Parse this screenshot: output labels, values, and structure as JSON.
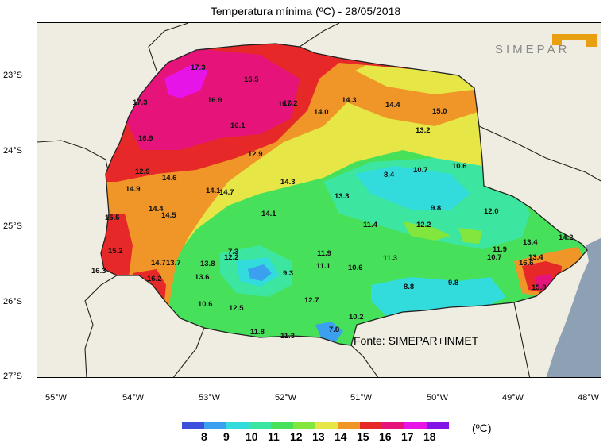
{
  "title": "Temperatura mínima (ºC)  -  28/05/2018",
  "logo_text": "SIMEPAR",
  "source": "Fonte: SIMEPAR+INMET",
  "lat_labels": [
    "23°S",
    "24°S",
    "25°S",
    "26°S",
    "27°S"
  ],
  "lon_labels": [
    "55°W",
    "54°W",
    "53°W",
    "52°W",
    "51°W",
    "50°W",
    "49°W",
    "48°W"
  ],
  "legend": {
    "unit": "(ºC)",
    "labels": [
      "8",
      "9",
      "10",
      "11",
      "12",
      "13",
      "14",
      "15",
      "16",
      "17",
      "18"
    ],
    "colors": [
      "#3c50dc",
      "#3ca0f0",
      "#32dcdc",
      "#3ce6a0",
      "#46e05a",
      "#82e63c",
      "#e6e646",
      "#f09628",
      "#e62828",
      "#e6147a",
      "#e614e6",
      "#8214e6"
    ]
  },
  "stations": [
    {
      "v": "17.3"
    },
    {
      "v": "15.5"
    },
    {
      "v": "17.3"
    },
    {
      "v": "16.9"
    },
    {
      "v": "16.2"
    },
    {
      "v": "14.3"
    },
    {
      "v": "14.4"
    },
    {
      "v": "15.0"
    },
    {
      "v": "14.0"
    },
    {
      "v": "17.2"
    },
    {
      "v": "16.1"
    },
    {
      "v": "16.9"
    },
    {
      "v": "13.2"
    },
    {
      "v": "12.9"
    },
    {
      "v": "12.9"
    },
    {
      "v": "14.6"
    },
    {
      "v": "14.9"
    },
    {
      "v": "14.1"
    },
    {
      "v": "14.7"
    },
    {
      "v": "14.3"
    },
    {
      "v": "8.4"
    },
    {
      "v": "10.7"
    },
    {
      "v": "10.6"
    },
    {
      "v": "13.3"
    },
    {
      "v": "14.4"
    },
    {
      "v": "14.5"
    },
    {
      "v": "14.1"
    },
    {
      "v": "9.8"
    },
    {
      "v": "12.0"
    },
    {
      "v": "15.5"
    },
    {
      "v": "11.4"
    },
    {
      "v": "12.2"
    },
    {
      "v": "15.2"
    },
    {
      "v": "7.3"
    },
    {
      "v": "12.2"
    },
    {
      "v": "11.9"
    },
    {
      "v": "14.7"
    },
    {
      "v": "13.7"
    },
    {
      "v": "13.8"
    },
    {
      "v": "11.1"
    },
    {
      "v": "10.6"
    },
    {
      "v": "11.3"
    },
    {
      "v": "11.9"
    },
    {
      "v": "13.4"
    },
    {
      "v": "14.2"
    },
    {
      "v": "9.3"
    },
    {
      "v": "16.3"
    },
    {
      "v": "16.2"
    },
    {
      "v": "13.6"
    },
    {
      "v": "10.7"
    },
    {
      "v": "16.6"
    },
    {
      "v": "8.8"
    },
    {
      "v": "9.8"
    },
    {
      "v": "12.7"
    },
    {
      "v": "15.8"
    },
    {
      "v": "10.6"
    },
    {
      "v": "12.5"
    },
    {
      "v": "10.2"
    },
    {
      "v": "11.8"
    },
    {
      "v": "11.3"
    },
    {
      "v": "7.8"
    },
    {
      "v": "13.4"
    }
  ]
}
